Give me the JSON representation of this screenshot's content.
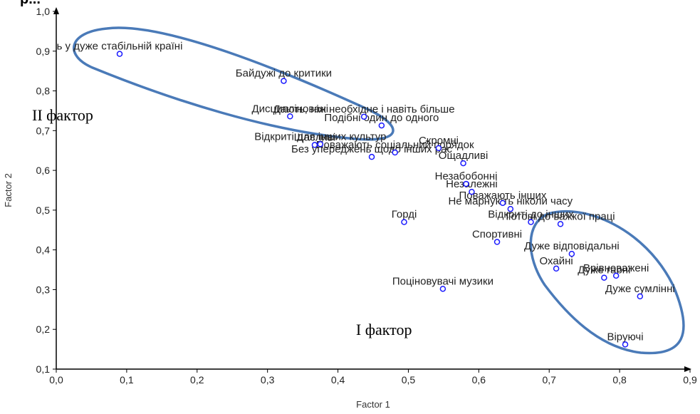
{
  "top_fragment": "p...",
  "chart_data": {
    "type": "scatter",
    "xlabel": "Factor 1",
    "ylabel": "Factor 2",
    "xlim": [
      0.0,
      0.9
    ],
    "ylim": [
      0.1,
      1.0
    ],
    "x_ticks": [
      "0,0",
      "0,1",
      "0,2",
      "0,3",
      "0,4",
      "0,5",
      "0,6",
      "0,7",
      "0,8",
      "0,9"
    ],
    "y_ticks": [
      "0,1",
      "0,2",
      "0,3",
      "0,4",
      "0,5",
      "0,6",
      "0,7",
      "0,8",
      "0,9",
      "1,0"
    ],
    "grid": false,
    "point_color": "#1a1aff",
    "ellipse_color": "#4a7ab8",
    "points": [
      {
        "label": "ь у дуже стабільній країні",
        "x": 0.09,
        "y": 0.893
      },
      {
        "label": "Байдужі до критики",
        "x": 0.323,
        "y": 0.825
      },
      {
        "label": "Дисципліновані",
        "x": 0.332,
        "y": 0.736
      },
      {
        "label": "Дають, ніж необхідне і навіть більше",
        "x": 0.437,
        "y": 0.735
      },
      {
        "label": "Подібні один до одного",
        "x": 0.462,
        "y": 0.713
      },
      {
        "label": "Відкриті для інших культур",
        "x": 0.375,
        "y": 0.666
      },
      {
        "label": "Щасливі",
        "x": 0.367,
        "y": 0.664
      },
      {
        "label": "Поважають соціальний порядок",
        "x": 0.481,
        "y": 0.645
      },
      {
        "label": "Скромні",
        "x": 0.543,
        "y": 0.656
      },
      {
        "label": "Без упереджень щодо інших рас",
        "x": 0.448,
        "y": 0.634
      },
      {
        "label": "Ощадливі",
        "x": 0.578,
        "y": 0.618
      },
      {
        "label": "Незабобонні",
        "x": 0.582,
        "y": 0.566
      },
      {
        "label": "Незалежні",
        "x": 0.59,
        "y": 0.546
      },
      {
        "label": "Поважають інших",
        "x": 0.634,
        "y": 0.518
      },
      {
        "label": "Не марнують ніколи часу",
        "x": 0.645,
        "y": 0.503
      },
      {
        "label": "Відкриті до інших",
        "x": 0.674,
        "y": 0.47
      },
      {
        "label": "Готові до важкої праці",
        "x": 0.716,
        "y": 0.465
      },
      {
        "label": "Горді",
        "x": 0.494,
        "y": 0.47
      },
      {
        "label": "Спортивні",
        "x": 0.626,
        "y": 0.42
      },
      {
        "label": "Дуже відповідальні",
        "x": 0.732,
        "y": 0.39
      },
      {
        "label": "Охайні",
        "x": 0.71,
        "y": 0.353
      },
      {
        "label": "Дуже гарні",
        "x": 0.778,
        "y": 0.33
      },
      {
        "label": "Врівноважені",
        "x": 0.795,
        "y": 0.335
      },
      {
        "label": "Поціновувачі музики",
        "x": 0.549,
        "y": 0.302
      },
      {
        "label": "Дуже сумлінні",
        "x": 0.829,
        "y": 0.283
      },
      {
        "label": "Віруючі",
        "x": 0.808,
        "y": 0.162
      }
    ],
    "annotations": [
      {
        "text": "II фактор",
        "x": 0.0,
        "y": 0.74
      },
      {
        "text": "I фактор",
        "x": 0.46,
        "y": 0.2
      }
    ]
  }
}
